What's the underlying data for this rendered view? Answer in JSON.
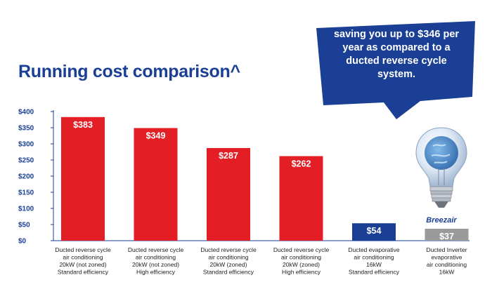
{
  "header": {
    "title": "Running cost comparison^"
  },
  "callout": {
    "text": "saving you up to $346 per year as compared to a ducted reverse cycle system."
  },
  "brand": {
    "name": "Breezair"
  },
  "colors": {
    "red": "#e31e24",
    "blue": "#1a3f95",
    "grey": "#9a9a9a"
  },
  "chart_data": {
    "type": "bar",
    "title": "Running cost comparison^",
    "ylabel": "",
    "xlabel": "",
    "ylim": [
      0,
      400
    ],
    "yticks": [
      "$0",
      "$50",
      "$100",
      "$150",
      "$200",
      "$250",
      "$300",
      "$350",
      "$400"
    ],
    "grid": false,
    "categories": [
      [
        "Ducted reverse cycle",
        "air conditioning",
        "20kW (not zoned)",
        "Standard efficiency"
      ],
      [
        "Ducted reverse cycle",
        "air conditioning",
        "20kW (not zoned)",
        "High efficiency"
      ],
      [
        "Ducted reverse cycle",
        "air conditioning",
        "20kW (zoned)",
        "Standard efficiency"
      ],
      [
        "Ducted reverse cycle",
        "air conditioning",
        "20kW (zoned)",
        "High efficiency"
      ],
      [
        "Ducted evaporative",
        "air conditioning",
        "16kW",
        "Standard efficiency"
      ],
      [
        "Ducted Inverter",
        "evaporative",
        "air conditioning",
        "16kW"
      ]
    ],
    "values": [
      383,
      349,
      287,
      262,
      54,
      37
    ],
    "data_labels": [
      "$383",
      "$349",
      "$287",
      "$262",
      "$54",
      "$37"
    ],
    "bar_colors": [
      "#e31e24",
      "#e31e24",
      "#e31e24",
      "#e31e24",
      "#1a3f95",
      "#9a9a9a"
    ]
  }
}
